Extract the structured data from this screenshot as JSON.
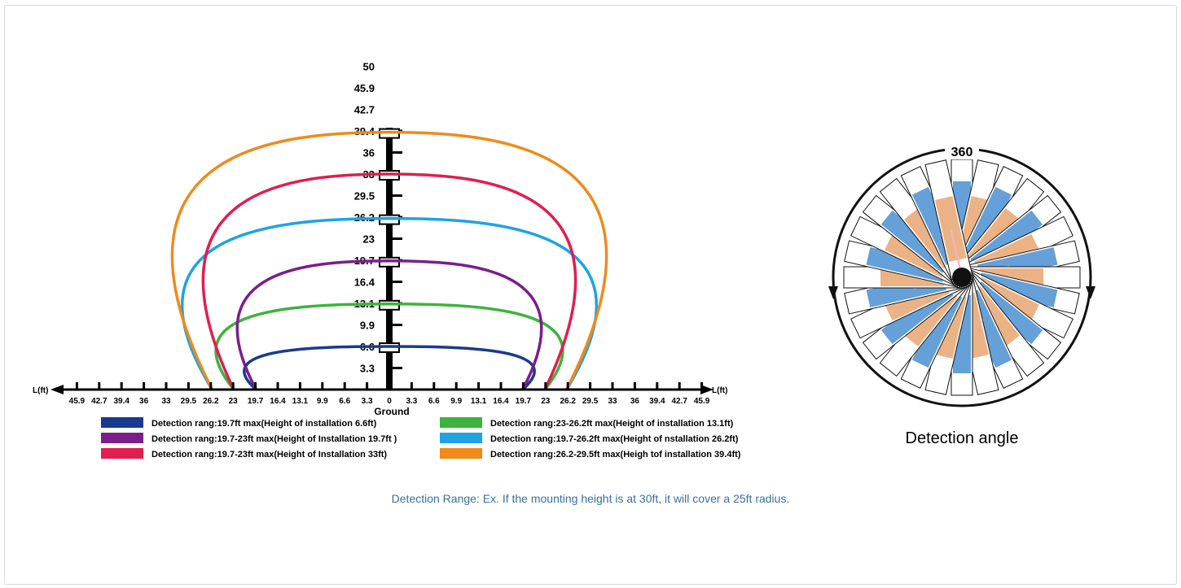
{
  "range_diagram": {
    "x_axis_label_left": "L(ft)",
    "x_axis_label_right": "L(ft)",
    "x_ticks": [
      "45.9",
      "42.7",
      "39.4",
      "36",
      "33",
      "29.5",
      "26.2",
      "23",
      "19.7",
      "16.4",
      "13.1",
      "9.9",
      "6.6",
      "3.3",
      "0",
      "3.3",
      "6.6",
      "9.9",
      "13.1",
      "16.4",
      "19.7",
      "23",
      "26.2",
      "29.5",
      "33",
      "36",
      "39.4",
      "42.7",
      "45.9"
    ],
    "y_ticks": [
      "3.3",
      "6.6",
      "9.9",
      "13.1",
      "16.4",
      "19.7",
      "23",
      "26.2",
      "29.5",
      "33",
      "36",
      "39.4",
      "42.7",
      "45.9",
      "50"
    ],
    "ground_label": "Ground",
    "ranges": [
      {
        "color": "#1a3a8f",
        "label": "Detection rang:19.7ft max(Height of installation 6.6ft)",
        "height": 6.6,
        "reach": 19.7
      },
      {
        "color": "#3db33d",
        "label": "Detection rang:23-26.2ft max(Height of installation 13.1ft)",
        "height": 13.1,
        "reach": 23
      },
      {
        "color": "#7b1e8c",
        "label": "Detection rang:19.7-23ft max(Height of Installation 19.7ft )",
        "height": 19.7,
        "reach": 19.7
      },
      {
        "color": "#1ea3e3",
        "label": "Detection rang:19.7-26.2ft max(Height of nstallation 26.2ft)",
        "height": 26.2,
        "reach": 26.2
      },
      {
        "color": "#e01e4f",
        "label": "Detection rang:19.7-23ft max(Height of Installation 33ft)",
        "height": 33,
        "reach": 23
      },
      {
        "color": "#f08a1a",
        "label": "Detection rang:26.2-29.5ft max(Heigh tof installation 39.4ft)",
        "height": 39.4,
        "reach": 26.2
      }
    ]
  },
  "angle_diagram": {
    "degrees_label": "360",
    "title": "Detection angle",
    "colors": {
      "outer_blue": "#4a8fd1",
      "inner_orange": "#e8a670",
      "inner_pink": "#f2b4c8",
      "ring": "#111111"
    }
  },
  "caption": "Detection Range: Ex. If the mounting height is at 30ft, it will cover a 25ft radius."
}
